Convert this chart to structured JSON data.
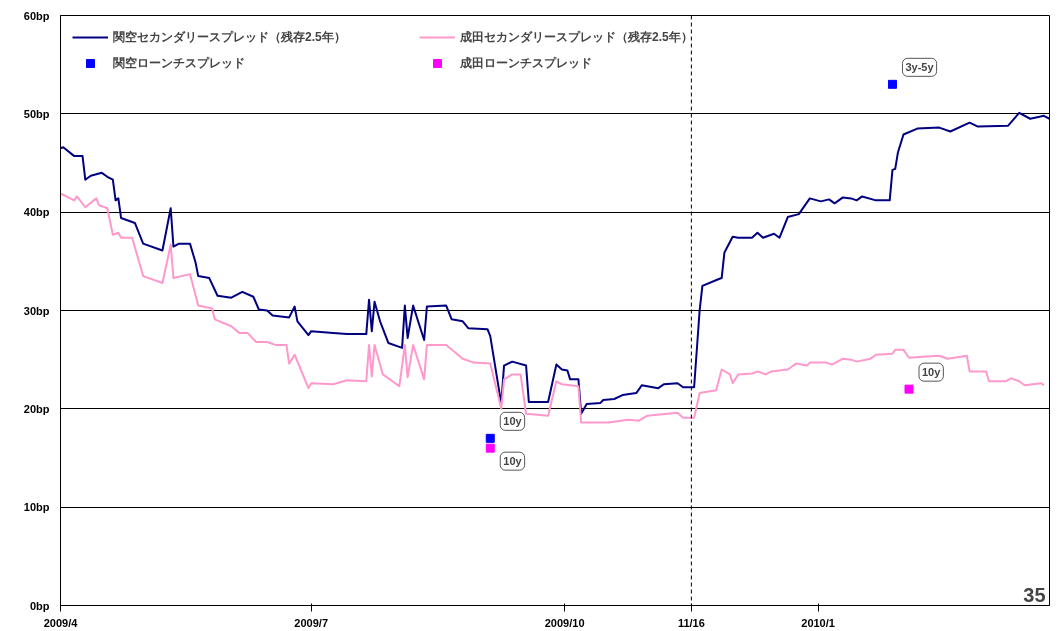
{
  "chart_data": {
    "type": "line",
    "xlim": [
      "2009-04-01",
      "2010-03-26"
    ],
    "xticks": [
      {
        "value": "2009-04-01",
        "label": "2009/4"
      },
      {
        "value": "2009-07-01",
        "label": "2009/7"
      },
      {
        "value": "2009-10-01",
        "label": "2009/10"
      },
      {
        "value": "2009-11-16",
        "label": "11/16"
      },
      {
        "value": "2010-01-01",
        "label": "2010/1"
      }
    ],
    "ylim": [
      0,
      60
    ],
    "yticks": [
      {
        "value": 0,
        "label": "0bp"
      },
      {
        "value": 10,
        "label": "10bp"
      },
      {
        "value": 20,
        "label": "20bp"
      },
      {
        "value": 30,
        "label": "30bp"
      },
      {
        "value": 40,
        "label": "40bp"
      },
      {
        "value": 50,
        "label": "50bp"
      },
      {
        "value": 60,
        "label": "60bp"
      }
    ],
    "grid": "y",
    "legend": "top left",
    "ref_lines": [
      {
        "axis": "x",
        "value": "2009-11-16",
        "color": "#000000",
        "line_style": "dashed"
      }
    ],
    "series": [
      {
        "name": "関空セカンダリースプレッド（残存2.5年）",
        "color": "#000080",
        "x": [
          "2009-04-01",
          "2009-04-02",
          "2009-04-06",
          "2009-04-09",
          "2009-04-10",
          "2009-04-12",
          "2009-04-16",
          "2009-04-18",
          "2009-04-20",
          "2009-04-21",
          "2009-04-22",
          "2009-04-23",
          "2009-04-28",
          "2009-05-01",
          "2009-05-08",
          "2009-05-11",
          "2009-05-12",
          "2009-05-14",
          "2009-05-18",
          "2009-05-20",
          "2009-05-21",
          "2009-05-25",
          "2009-05-28",
          "2009-06-02",
          "2009-06-06",
          "2009-06-10",
          "2009-06-12",
          "2009-06-15",
          "2009-06-17",
          "2009-06-23",
          "2009-06-25",
          "2009-06-26",
          "2009-06-30",
          "2009-07-01",
          "2009-07-09",
          "2009-07-14",
          "2009-07-21",
          "2009-07-22",
          "2009-07-23",
          "2009-07-24",
          "2009-07-26",
          "2009-07-29",
          "2009-08-03",
          "2009-08-04",
          "2009-08-05",
          "2009-08-07",
          "2009-08-11",
          "2009-08-12",
          "2009-08-19",
          "2009-08-21",
          "2009-08-25",
          "2009-08-27",
          "2009-09-03",
          "2009-09-04",
          "2009-09-08",
          "2009-09-09",
          "2009-09-12",
          "2009-09-17",
          "2009-09-18",
          "2009-09-25",
          "2009-09-28",
          "2009-09-30",
          "2009-10-02",
          "2009-10-03",
          "2009-10-06",
          "2009-10-07",
          "2009-10-09",
          "2009-10-14",
          "2009-10-15",
          "2009-10-19",
          "2009-10-22",
          "2009-10-27",
          "2009-10-29",
          "2009-11-04",
          "2009-11-06",
          "2009-11-11",
          "2009-11-13",
          "2009-11-17",
          "2009-11-19",
          "2009-11-20",
          "2009-11-26",
          "2009-11-27",
          "2009-11-28",
          "2009-12-01",
          "2009-12-03",
          "2009-12-08",
          "2009-12-10",
          "2009-12-12",
          "2009-12-16",
          "2009-12-18",
          "2009-12-21",
          "2009-12-25",
          "2009-12-29",
          "2010-01-02",
          "2010-01-05",
          "2010-01-07",
          "2010-01-10",
          "2010-01-13",
          "2010-01-15",
          "2010-01-17",
          "2010-01-22",
          "2010-01-27",
          "2010-01-28",
          "2010-01-29",
          "2010-01-30",
          "2010-02-01",
          "2010-02-06",
          "2010-02-14",
          "2010-02-18",
          "2010-02-25",
          "2010-02-28",
          "2010-03-11",
          "2010-03-15",
          "2010-03-19",
          "2010-03-24",
          "2010-03-26"
        ],
        "values": [
          46.5,
          46.6,
          45.7,
          45.7,
          43.3,
          43.7,
          44.0,
          43.6,
          43.3,
          41.2,
          41.4,
          39.4,
          38.9,
          36.8,
          36.1,
          40.4,
          36.5,
          36.8,
          36.8,
          34.9,
          33.5,
          33.3,
          31.5,
          31.3,
          31.9,
          31.4,
          30.1,
          30.0,
          29.5,
          29.3,
          30.4,
          28.9,
          27.5,
          27.9,
          27.7,
          27.6,
          27.6,
          31.1,
          27.9,
          30.9,
          28.9,
          26.7,
          26.2,
          30.5,
          27.2,
          30.5,
          27.0,
          30.4,
          30.5,
          29.1,
          28.9,
          28.2,
          28.1,
          27.4,
          20.5,
          24.4,
          24.8,
          24.4,
          20.7,
          20.7,
          24.5,
          24.0,
          23.9,
          23.0,
          23.0,
          19.5,
          20.5,
          20.6,
          20.9,
          21.0,
          21.4,
          21.6,
          22.4,
          22.1,
          22.5,
          22.6,
          22.2,
          22.2,
          30.0,
          32.5,
          33.2,
          33.3,
          35.9,
          37.5,
          37.4,
          37.4,
          37.9,
          37.4,
          37.8,
          37.4,
          39.5,
          39.8,
          41.4,
          41.1,
          41.3,
          40.9,
          41.5,
          41.4,
          41.2,
          41.6,
          41.2,
          41.2,
          44.3,
          44.4,
          46.1,
          47.9,
          48.5,
          48.6,
          48.2,
          49.1,
          48.7,
          48.8,
          50.1,
          49.5,
          49.8,
          49.5
        ]
      },
      {
        "name": "成田セカンダリースプレッド（残存2.5年）",
        "color": "#ff99cc",
        "x": [
          "2009-04-01",
          "2009-04-06",
          "2009-04-07",
          "2009-04-10",
          "2009-04-14",
          "2009-04-15",
          "2009-04-18",
          "2009-04-20",
          "2009-04-22",
          "2009-04-23",
          "2009-04-27",
          "2009-05-01",
          "2009-05-08",
          "2009-05-11",
          "2009-05-12",
          "2009-05-18",
          "2009-05-21",
          "2009-05-26",
          "2009-05-27",
          "2009-06-02",
          "2009-06-05",
          "2009-06-08",
          "2009-06-11",
          "2009-06-15",
          "2009-06-18",
          "2009-06-22",
          "2009-06-23",
          "2009-06-25",
          "2009-06-30",
          "2009-07-01",
          "2009-07-09",
          "2009-07-14",
          "2009-07-21",
          "2009-07-22",
          "2009-07-23",
          "2009-07-24",
          "2009-07-27",
          "2009-08-02",
          "2009-08-04",
          "2009-08-05",
          "2009-08-07",
          "2009-08-11",
          "2009-08-12",
          "2009-08-19",
          "2009-08-25",
          "2009-08-29",
          "2009-09-04",
          "2009-09-08",
          "2009-09-09",
          "2009-09-12",
          "2009-09-15",
          "2009-09-17",
          "2009-09-25",
          "2009-09-28",
          "2009-09-30",
          "2009-10-06",
          "2009-10-07",
          "2009-10-17",
          "2009-10-24",
          "2009-10-28",
          "2009-10-31",
          "2009-11-11",
          "2009-11-13",
          "2009-11-17",
          "2009-11-19",
          "2009-11-25",
          "2009-11-27",
          "2009-11-30",
          "2009-12-01",
          "2009-12-03",
          "2009-12-08",
          "2009-12-10",
          "2009-12-13",
          "2009-12-15",
          "2009-12-21",
          "2009-12-24",
          "2009-12-28",
          "2009-12-29",
          "2010-01-04",
          "2010-01-06",
          "2010-01-10",
          "2010-01-13",
          "2010-01-15",
          "2010-01-20",
          "2010-01-22",
          "2010-01-28",
          "2010-01-29",
          "2010-02-01",
          "2010-02-03",
          "2010-02-08",
          "2010-02-14",
          "2010-02-17",
          "2010-02-24",
          "2010-02-25",
          "2010-03-03",
          "2010-03-04",
          "2010-03-10",
          "2010-03-12",
          "2010-03-15",
          "2010-03-17",
          "2010-03-23",
          "2010-03-24"
        ],
        "values": [
          41.9,
          41.2,
          41.6,
          40.5,
          41.4,
          40.7,
          40.4,
          37.7,
          37.9,
          37.4,
          37.4,
          33.5,
          32.8,
          36.7,
          33.3,
          33.7,
          30.5,
          30.2,
          29.1,
          28.4,
          27.7,
          27.7,
          26.8,
          26.8,
          26.5,
          26.5,
          24.6,
          25.5,
          22.1,
          22.6,
          22.5,
          22.9,
          22.8,
          26.5,
          23.3,
          26.5,
          23.5,
          22.3,
          26.5,
          23.2,
          26.5,
          23.0,
          26.5,
          26.5,
          25.1,
          24.7,
          24.6,
          20.0,
          23.0,
          23.5,
          23.5,
          19.5,
          19.3,
          22.8,
          22.5,
          22.3,
          18.6,
          18.6,
          18.9,
          18.8,
          19.3,
          19.6,
          19.1,
          19.1,
          21.6,
          21.9,
          24.0,
          23.5,
          22.6,
          23.5,
          23.6,
          23.8,
          23.5,
          23.8,
          24.0,
          24.6,
          24.4,
          24.7,
          24.7,
          24.5,
          25.1,
          25.0,
          24.8,
          25.1,
          25.5,
          25.6,
          26.0,
          26.0,
          25.2,
          25.3,
          25.4,
          25.1,
          25.4,
          23.8,
          23.8,
          22.8,
          22.8,
          23.1,
          22.8,
          22.4,
          22.6,
          22.4
        ]
      },
      {
        "name": "関空ローンチスプレッド",
        "type": "scatter",
        "marker": "square",
        "color": "#0000ff",
        "x": [
          "2009-09-04",
          "2010-01-28"
        ],
        "values": [
          17,
          53
        ]
      },
      {
        "name": "成田ローンチスプレッド",
        "type": "scatter",
        "marker": "square",
        "color": "#ff00ff",
        "x": [
          "2009-09-04",
          "2010-02-03"
        ],
        "values": [
          16,
          22
        ]
      }
    ],
    "annotations": [
      {
        "text": "10y",
        "x": "2009-09-04",
        "y": 17
      },
      {
        "text": "10y",
        "x": "2009-09-04",
        "y": 16
      },
      {
        "text": "3y-5y",
        "x": "2010-01-28",
        "y": 53
      },
      {
        "text": "10y",
        "x": "2010-02-03",
        "y": 22
      },
      "35"
    ]
  }
}
